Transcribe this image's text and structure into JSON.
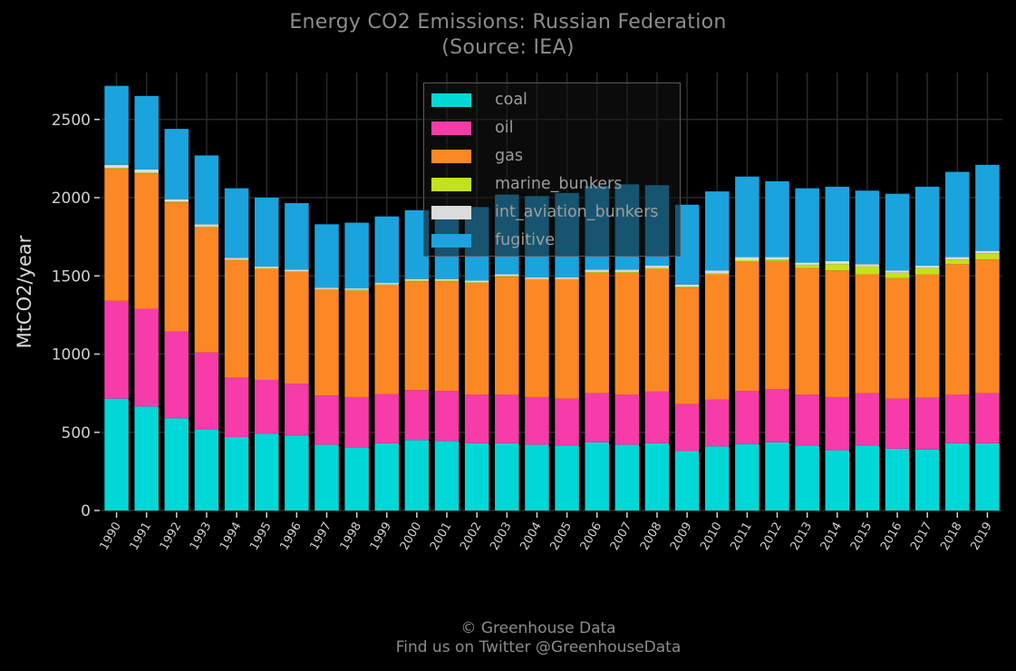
{
  "title_line1": "Energy CO2 Emissions: Russian Federation",
  "title_line2": "(Source: IEA)",
  "footer_line1": "© Greenhouse Data",
  "footer_line2": "Find us on Twitter @GreenhouseData",
  "colors": {
    "coal": "#00d7d7",
    "oil": "#f73ba9",
    "gas": "#fb8824",
    "marine_bunkers": "#c4e11e",
    "int_aviation_bunkers": "#dcdcdc",
    "fugitive": "#1ba3dd",
    "grid": "#2a2a2a",
    "tick_text": "#d0d0d0"
  },
  "chart_data": {
    "type": "bar",
    "stacked": true,
    "title": "Energy CO2 Emissions: Russian Federation\n(Source: IEA)",
    "xlabel": "",
    "ylabel": "MtCO2/year",
    "ylim": [
      0,
      2800
    ],
    "yticks": [
      0,
      500,
      1000,
      1500,
      2000,
      2500
    ],
    "grid": true,
    "legend_position": "top-center",
    "categories": [
      "1990",
      "1991",
      "1992",
      "1993",
      "1994",
      "1995",
      "1996",
      "1997",
      "1998",
      "1999",
      "2000",
      "2001",
      "2002",
      "2003",
      "2004",
      "2005",
      "2006",
      "2007",
      "2008",
      "2009",
      "2010",
      "2011",
      "2012",
      "2013",
      "2014",
      "2015",
      "2016",
      "2017",
      "2018",
      "2019"
    ],
    "series": [
      {
        "name": "coal",
        "values": [
          715,
          665,
          590,
          520,
          470,
          490,
          480,
          420,
          400,
          430,
          450,
          445,
          430,
          430,
          420,
          415,
          435,
          420,
          430,
          380,
          410,
          425,
          435,
          415,
          385,
          415,
          395,
          390,
          430,
          430
        ]
      },
      {
        "name": "oil",
        "values": [
          625,
          625,
          555,
          490,
          380,
          345,
          330,
          315,
          325,
          315,
          320,
          320,
          310,
          310,
          305,
          300,
          315,
          320,
          330,
          300,
          300,
          340,
          340,
          325,
          340,
          335,
          320,
          330,
          310,
          320
        ]
      },
      {
        "name": "gas",
        "values": [
          845,
          865,
          825,
          800,
          750,
          710,
          715,
          675,
          680,
          695,
          695,
          700,
          715,
          755,
          750,
          760,
          770,
          780,
          785,
          745,
          800,
          825,
          820,
          810,
          810,
          760,
          770,
          790,
          835,
          855
        ]
      },
      {
        "name": "marine_bunkers",
        "values": [
          5,
          5,
          5,
          5,
          5,
          5,
          5,
          5,
          5,
          5,
          5,
          5,
          5,
          5,
          5,
          5,
          5,
          5,
          5,
          5,
          5,
          10,
          10,
          20,
          40,
          50,
          35,
          40,
          30,
          40
        ]
      },
      {
        "name": "int_aviation_bunkers",
        "values": [
          20,
          20,
          15,
          15,
          10,
          10,
          10,
          10,
          10,
          10,
          10,
          10,
          10,
          10,
          10,
          10,
          15,
          15,
          15,
          15,
          20,
          20,
          15,
          15,
          20,
          15,
          15,
          15,
          15,
          15
        ]
      },
      {
        "name": "fugitive",
        "values": [
          505,
          470,
          450,
          440,
          445,
          440,
          425,
          405,
          420,
          425,
          440,
          440,
          470,
          510,
          520,
          540,
          535,
          545,
          515,
          510,
          505,
          515,
          485,
          475,
          475,
          470,
          490,
          505,
          545,
          550
        ]
      }
    ]
  }
}
